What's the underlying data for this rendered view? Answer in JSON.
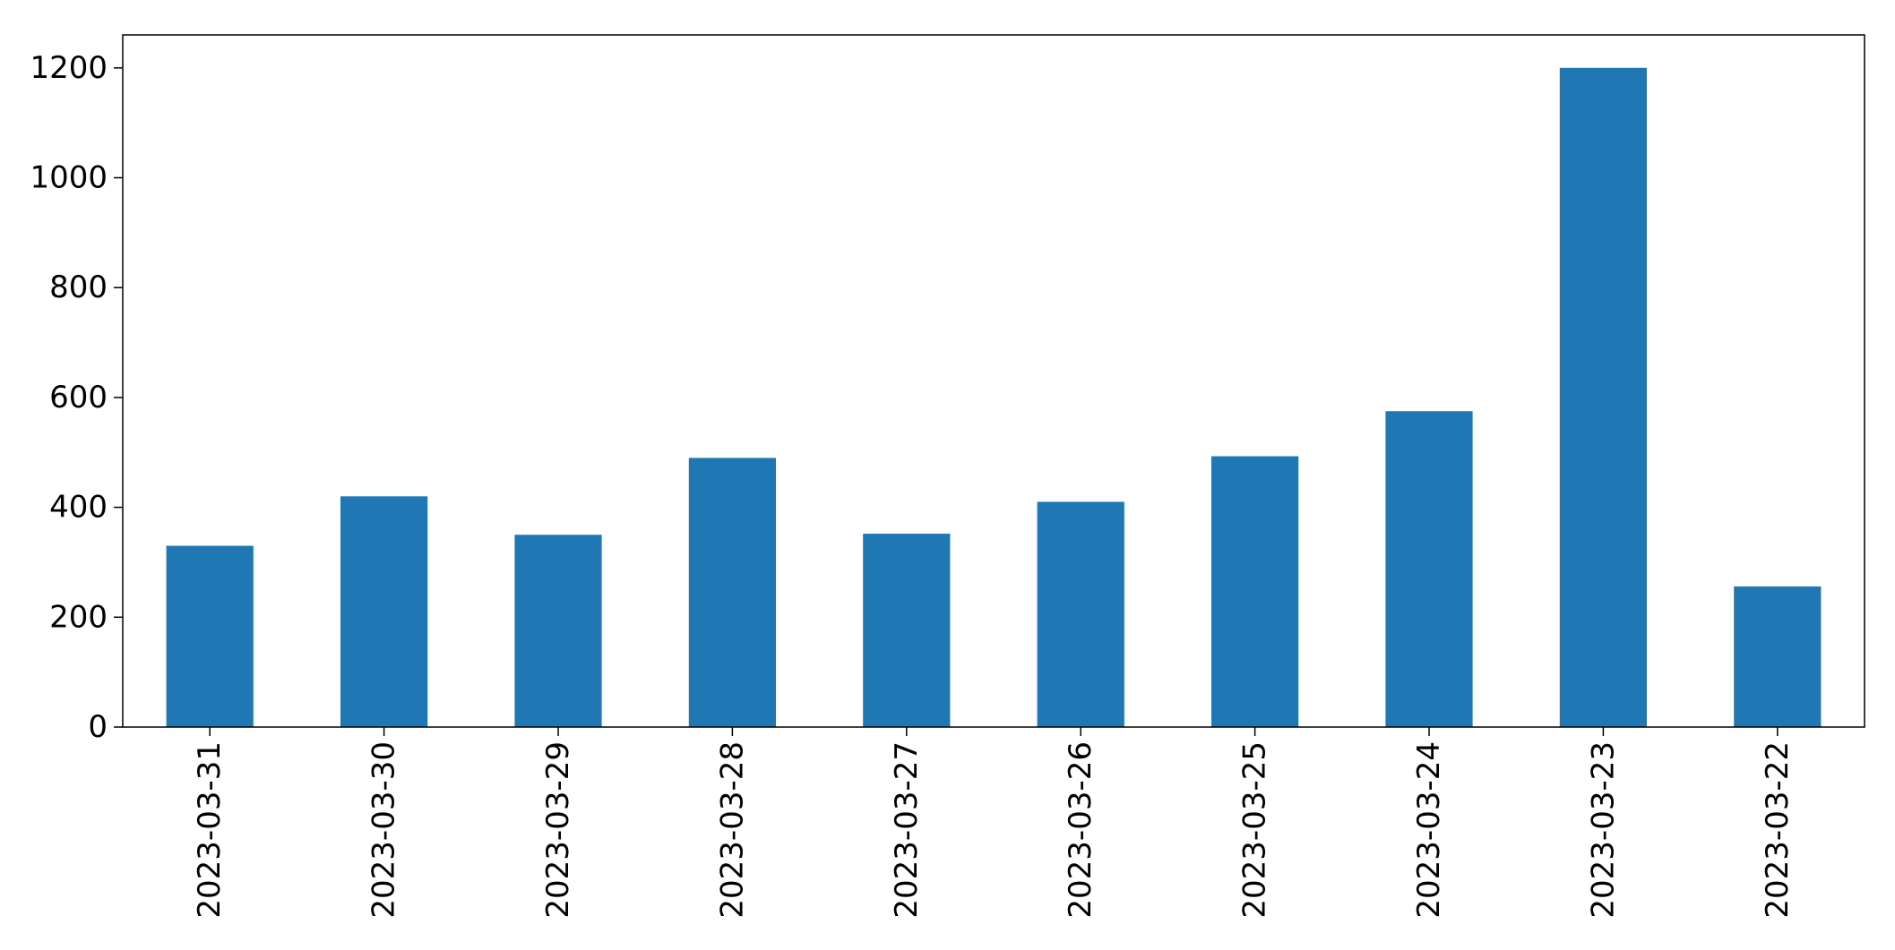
{
  "chart_data": {
    "type": "bar",
    "categories": [
      "2023-03-31",
      "2023-03-30",
      "2023-03-29",
      "2023-03-28",
      "2023-03-27",
      "2023-03-26",
      "2023-03-25",
      "2023-03-24",
      "2023-03-23",
      "2023-03-22"
    ],
    "values": [
      330,
      420,
      350,
      490,
      352,
      410,
      493,
      575,
      1200,
      256
    ],
    "title": "",
    "xlabel": "",
    "ylabel": "",
    "ylim": [
      0,
      1260
    ],
    "yticks": [
      0,
      200,
      400,
      600,
      800,
      1000,
      1200
    ],
    "grid": false,
    "legend": "none",
    "bar_color": "#1f77b4"
  }
}
